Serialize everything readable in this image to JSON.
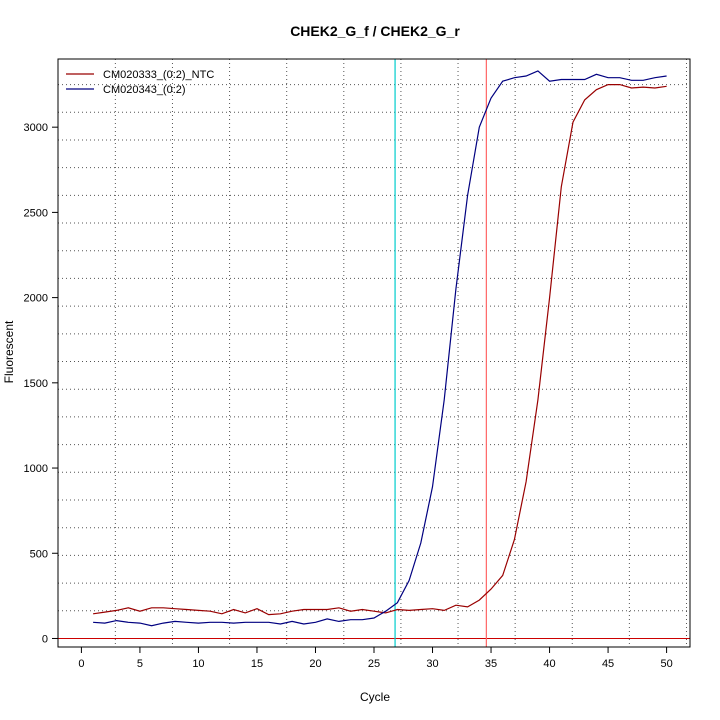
{
  "chart_data": {
    "type": "line",
    "title": "CHEK2_G_f / CHEK2_G_r",
    "xlabel": "Cycle",
    "ylabel": "Fluorescent",
    "xlim": [
      -2,
      52
    ],
    "ylim": [
      -50,
      3400
    ],
    "x_ticks": [
      0,
      5,
      10,
      15,
      20,
      25,
      30,
      35,
      40,
      45,
      50
    ],
    "y_ticks": [
      0,
      500,
      1000,
      1500,
      2000,
      2500,
      3000
    ],
    "grid": true,
    "legend_position": "top-left",
    "threshold_y": 0,
    "threshold_color": "#cc0000",
    "vertical_markers": [
      {
        "x": 26.8,
        "color": "#00cccc"
      },
      {
        "x": 34.6,
        "color": "#ff6666"
      }
    ],
    "series": [
      {
        "name": "CM020333_(0:2)_NTC",
        "color": "#990000",
        "x": [
          1,
          2,
          3,
          4,
          5,
          6,
          7,
          8,
          9,
          10,
          11,
          12,
          13,
          14,
          15,
          16,
          17,
          18,
          19,
          20,
          21,
          22,
          23,
          24,
          25,
          26,
          27,
          28,
          29,
          30,
          31,
          32,
          33,
          34,
          35,
          36,
          37,
          38,
          39,
          40,
          41,
          42,
          43,
          44,
          45,
          46,
          47,
          48,
          49,
          50
        ],
        "values": [
          145,
          155,
          165,
          180,
          160,
          180,
          180,
          175,
          170,
          165,
          160,
          145,
          170,
          150,
          175,
          140,
          145,
          160,
          170,
          170,
          170,
          180,
          160,
          170,
          160,
          150,
          170,
          165,
          170,
          175,
          165,
          195,
          185,
          225,
          290,
          370,
          580,
          920,
          1400,
          2000,
          2650,
          3030,
          3160,
          3220,
          3250,
          3250,
          3230,
          3235,
          3230,
          3240
        ]
      },
      {
        "name": "CM020343_(0:2)",
        "color": "#000080",
        "x": [
          1,
          2,
          3,
          4,
          5,
          6,
          7,
          8,
          9,
          10,
          11,
          12,
          13,
          14,
          15,
          16,
          17,
          18,
          19,
          20,
          21,
          22,
          23,
          24,
          25,
          26,
          27,
          28,
          29,
          30,
          31,
          32,
          33,
          34,
          35,
          36,
          37,
          38,
          39,
          40,
          41,
          42,
          43,
          44,
          45,
          46,
          47,
          48,
          49,
          50
        ],
        "values": [
          95,
          90,
          105,
          95,
          90,
          75,
          90,
          100,
          95,
          90,
          95,
          95,
          90,
          95,
          95,
          95,
          85,
          100,
          85,
          95,
          115,
          100,
          110,
          110,
          120,
          160,
          210,
          340,
          560,
          890,
          1400,
          2050,
          2600,
          3000,
          3170,
          3270,
          3290,
          3300,
          3330,
          3270,
          3280,
          3280,
          3280,
          3310,
          3290,
          3290,
          3275,
          3275,
          3290,
          3300
        ]
      }
    ]
  }
}
